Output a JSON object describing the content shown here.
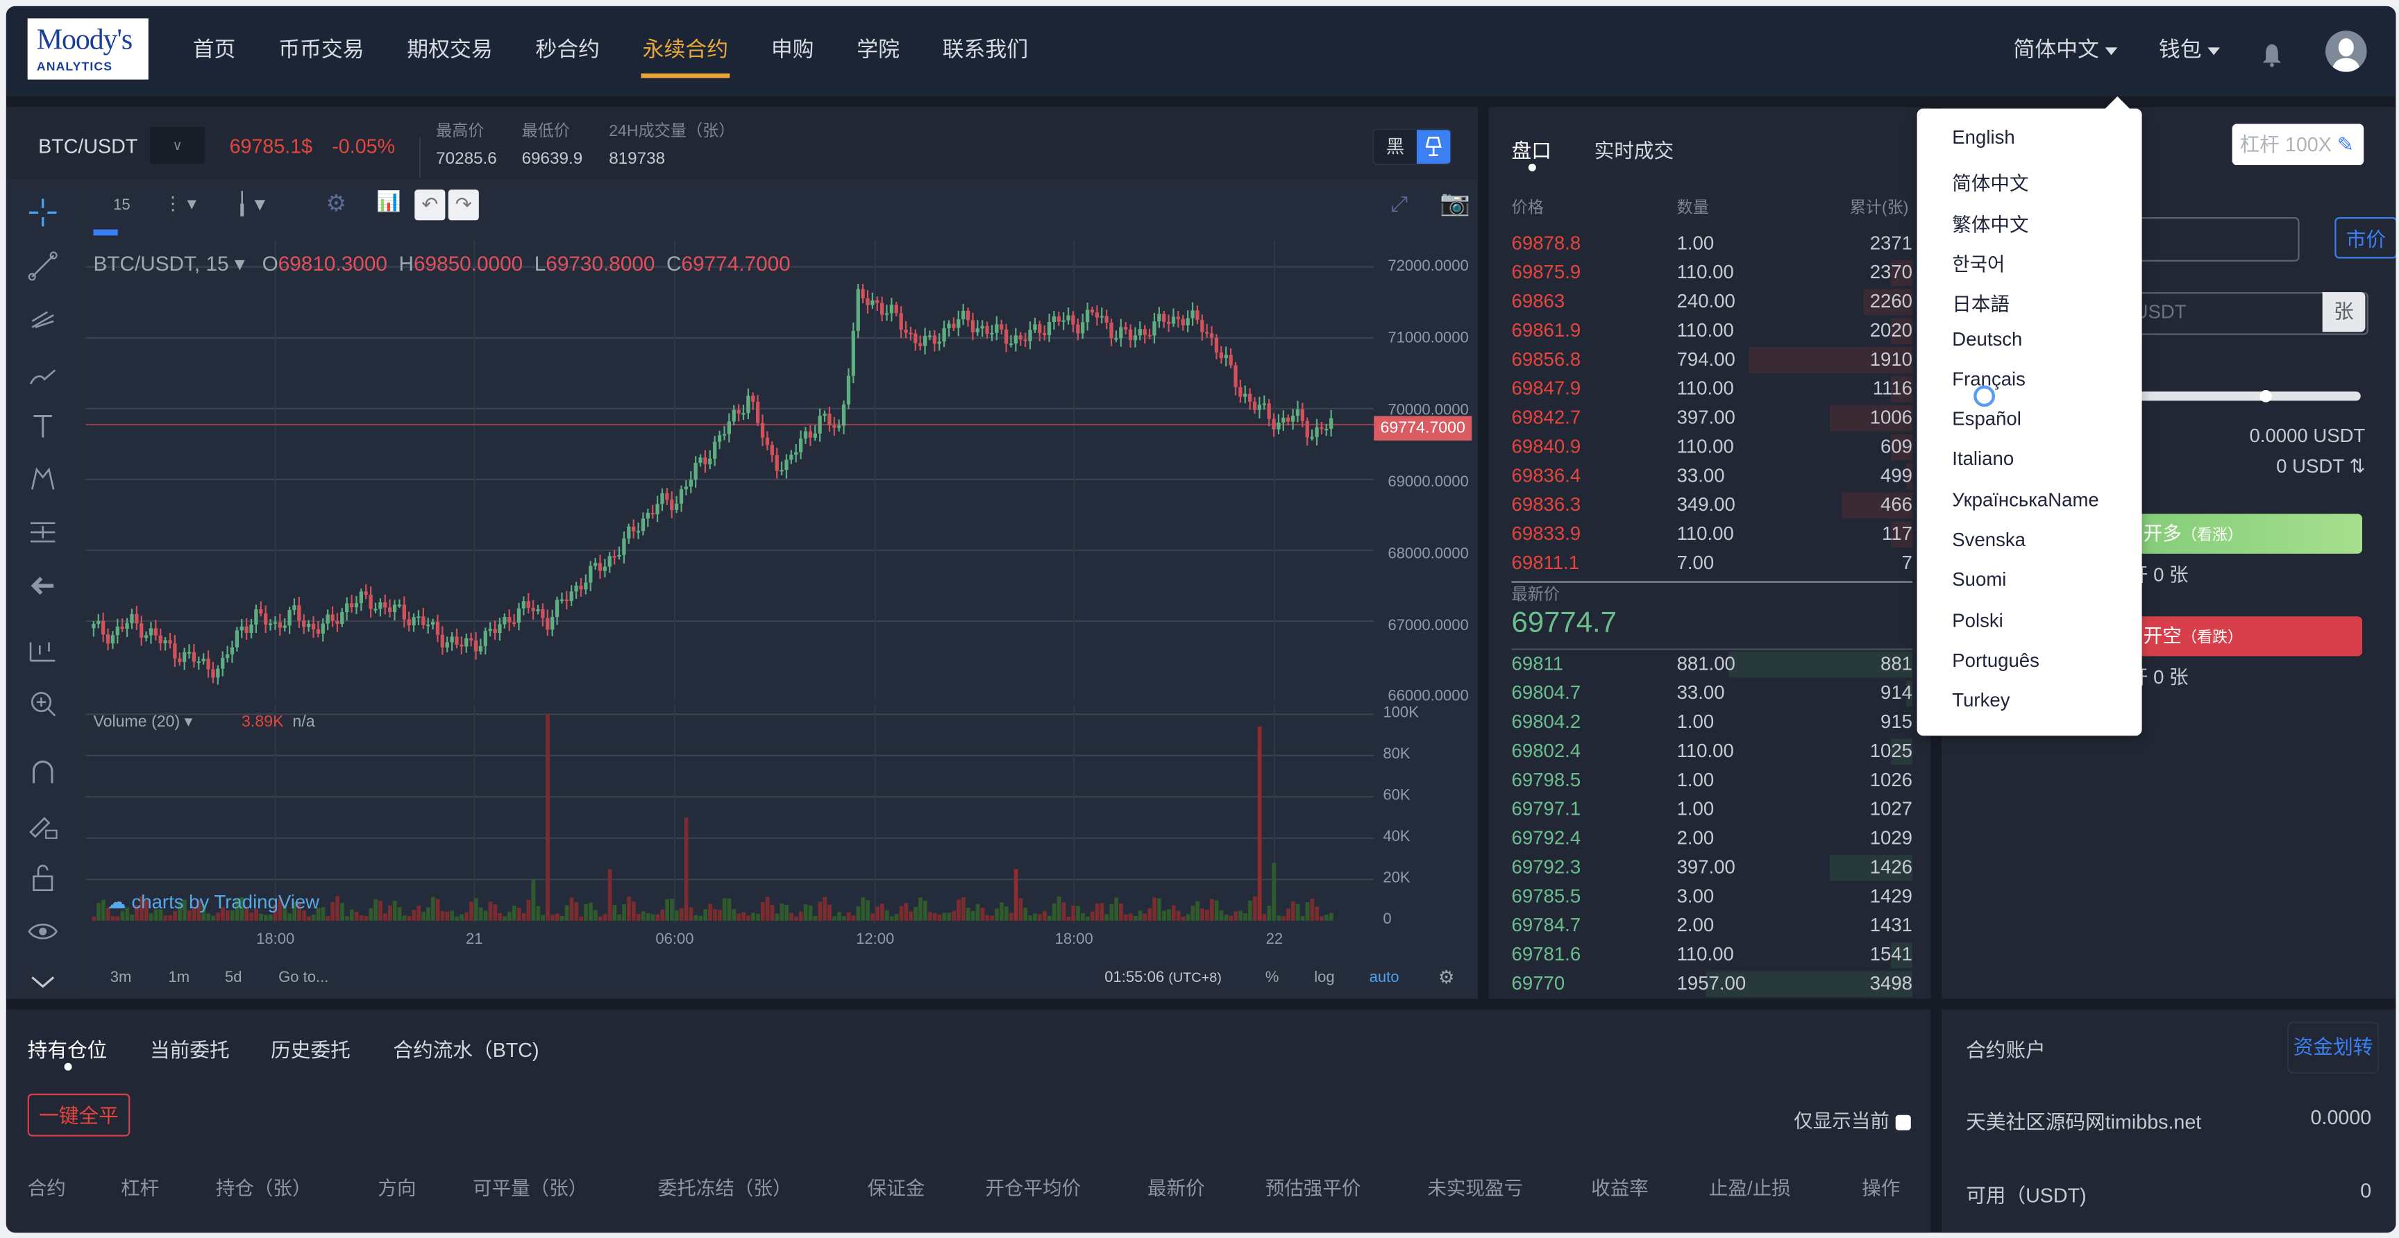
{
  "header": {
    "logo": {
      "line1": "Moody's",
      "line2": "ANALYTICS"
    },
    "nav": [
      {
        "label": "首页"
      },
      {
        "label": "币币交易"
      },
      {
        "label": "期权交易"
      },
      {
        "label": "秒合约"
      },
      {
        "label": "永续合约",
        "active": true
      },
      {
        "label": "申购"
      },
      {
        "label": "学院"
      },
      {
        "label": "联系我们"
      }
    ],
    "language": "简体中文",
    "wallet": "钱包",
    "icons": [
      "bell-icon",
      "avatar-icon"
    ]
  },
  "ticker": {
    "symbol": "BTC/USDT",
    "price": "69785.1$",
    "change": "-0.05%",
    "stats": [
      {
        "label": "最高价",
        "value": "70285.6"
      },
      {
        "label": "最低价",
        "value": "69639.9"
      },
      {
        "label": "24H成交量（张）",
        "value": "819738"
      }
    ],
    "theme_dark_label": "黑"
  },
  "chart": {
    "interval": "15",
    "legend": {
      "symbol": "BTC/USDT, 15",
      "o": "69810.3000",
      "h": "69850.0000",
      "l": "69730.8000",
      "c": "69774.7000"
    },
    "volume_legend": {
      "label": "Volume (20)",
      "value": "3.89K",
      "ma": "n/a"
    },
    "last_price_tag": "69774.7000",
    "watermark": "charts by TradingView",
    "footer": {
      "ranges": [
        "3m",
        "1m",
        "5d",
        "Go to..."
      ],
      "time": "01:55:06",
      "tz": "(UTC+8)",
      "percent": "%",
      "log": "log",
      "auto": "auto"
    }
  },
  "chart_data": {
    "type": "candlestick",
    "title": "BTC/USDT, 15",
    "xlabel": "",
    "ylabel": "",
    "x_ticks": [
      "18:00",
      "21",
      "06:00",
      "12:00",
      "18:00",
      "22"
    ],
    "y_ticks": [
      "72000.0000",
      "71000.0000",
      "70000.0000",
      "69000.0000",
      "68000.0000",
      "67000.0000",
      "66000.0000"
    ],
    "ylim": [
      66000,
      72300
    ],
    "volume_ticks": [
      "100K",
      "80K",
      "60K",
      "40K",
      "20K",
      "0"
    ],
    "volume_ylim": [
      0,
      100000
    ],
    "last_price": 69774.7,
    "close_series_approx": [
      66900,
      66800,
      67000,
      66850,
      66650,
      66500,
      66400,
      66300,
      66900,
      67050,
      66950,
      67100,
      66900,
      66950,
      67250,
      67300,
      67200,
      67100,
      67000,
      66800,
      66650,
      66700,
      66850,
      67100,
      67200,
      67000,
      67350,
      67600,
      67800,
      68050,
      68400,
      68650,
      68700,
      69100,
      69450,
      69800,
      70200,
      69400,
      69150,
      69600,
      69850,
      69700,
      71550,
      71500,
      71300,
      71000,
      70900,
      71200,
      71250,
      71100,
      71050,
      70950,
      71150,
      71250,
      71200,
      71350,
      71100,
      71000,
      71150,
      71250,
      71300,
      71150,
      70750,
      70250,
      70000,
      69800,
      69900,
      69650,
      69774.7
    ],
    "volume_peaks": [
      {
        "x": "~03:30 (21)",
        "value": 100000,
        "dir": "up"
      },
      {
        "x": "~05:30 (21)",
        "value": 51000,
        "dir": "up"
      },
      {
        "x": "~20:30 (21)",
        "value": 94000,
        "dir": "down"
      },
      {
        "x": "~12:20 (21)",
        "value": 25000,
        "dir": "down"
      }
    ],
    "grid": true
  },
  "orderbook": {
    "tabs": [
      {
        "label": "盘口",
        "active": true
      },
      {
        "label": "实时成交"
      }
    ],
    "headers": {
      "price": "价格",
      "qty": "数量",
      "total": "累计(张)"
    },
    "asks": [
      {
        "price": "69878.8",
        "qty": "1.00",
        "total": "2371",
        "bar": 0
      },
      {
        "price": "69875.9",
        "qty": "110.00",
        "total": "2370",
        "bar": 10
      },
      {
        "price": "69863",
        "qty": "240.00",
        "total": "2260",
        "bar": 24
      },
      {
        "price": "69861.9",
        "qty": "110.00",
        "total": "2020",
        "bar": 10
      },
      {
        "price": "69856.8",
        "qty": "794.00",
        "total": "1910",
        "bar": 79
      },
      {
        "price": "69847.9",
        "qty": "110.00",
        "total": "1116",
        "bar": 10
      },
      {
        "price": "69842.7",
        "qty": "397.00",
        "total": "1006",
        "bar": 40
      },
      {
        "price": "69840.9",
        "qty": "110.00",
        "total": "609",
        "bar": 10
      },
      {
        "price": "69836.4",
        "qty": "33.00",
        "total": "499",
        "bar": 3
      },
      {
        "price": "69836.3",
        "qty": "349.00",
        "total": "466",
        "bar": 34
      },
      {
        "price": "69833.9",
        "qty": "110.00",
        "total": "117",
        "bar": 10
      },
      {
        "price": "69811.1",
        "qty": "7.00",
        "total": "7",
        "bar": 0
      }
    ],
    "last_label": "最新价",
    "last_price": "69774.7",
    "bids": [
      {
        "price": "69811",
        "qty": "881.00",
        "total": "881",
        "bar": 89
      },
      {
        "price": "69804.7",
        "qty": "33.00",
        "total": "914",
        "bar": 3
      },
      {
        "price": "69804.2",
        "qty": "1.00",
        "total": "915",
        "bar": 0
      },
      {
        "price": "69802.4",
        "qty": "110.00",
        "total": "1025",
        "bar": 10
      },
      {
        "price": "69798.5",
        "qty": "1.00",
        "total": "1026",
        "bar": 0
      },
      {
        "price": "69797.1",
        "qty": "1.00",
        "total": "1027",
        "bar": 0
      },
      {
        "price": "69792.4",
        "qty": "2.00",
        "total": "1029",
        "bar": 0
      },
      {
        "price": "69792.3",
        "qty": "397.00",
        "total": "1426",
        "bar": 40
      },
      {
        "price": "69785.5",
        "qty": "3.00",
        "total": "1429",
        "bar": 0
      },
      {
        "price": "69784.7",
        "qty": "2.00",
        "total": "1431",
        "bar": 0
      },
      {
        "price": "69781.6",
        "qty": "110.00",
        "total": "1541",
        "bar": 10
      },
      {
        "price": "69770",
        "qty": "1957.00",
        "total": "3498",
        "bar": 100
      }
    ]
  },
  "trade": {
    "leverage": "杠杆 100X",
    "market_btn": "市价",
    "amount_placeholder": "USDT",
    "unit": "张",
    "balance1": "0.0000 USDT",
    "balance2": "0 USDT",
    "long_btn": "开多",
    "long_hint": "（看涨）",
    "long_avail": "可开 0 张",
    "short_btn": "开空",
    "short_hint": "（看跌）",
    "short_avail": "可开 0 张"
  },
  "language_menu": {
    "options": [
      "English",
      "简体中文",
      "繁体中文",
      "한국어",
      "日本語",
      "Deutsch",
      "Français",
      "Español",
      "Italiano",
      "УкраїнськаName",
      "Svenska",
      "Suomi",
      "Polski",
      "Português",
      "Turkey"
    ]
  },
  "positions": {
    "tabs": [
      {
        "label": "持有仓位",
        "active": true
      },
      {
        "label": "当前委托"
      },
      {
        "label": "历史委托"
      },
      {
        "label": "合约流水（BTC)"
      }
    ],
    "close_all": "一键全平",
    "only_current": "仅显示当前",
    "columns": [
      "合约",
      "杠杆",
      "持仓（张）",
      "方向",
      "可平量（张）",
      "委托冻结（张）",
      "保证金",
      "开仓平均价",
      "最新价",
      "预估强平价",
      "未实现盈亏",
      "收益率",
      "止盈/止损",
      "操作"
    ]
  },
  "account": {
    "title": "合约账户",
    "transfer": "资金划转",
    "rows": [
      {
        "label": "天美社区源码网timibbs.net",
        "value": "0.0000"
      },
      {
        "label": "可用（USDT)",
        "value": "0"
      }
    ]
  }
}
